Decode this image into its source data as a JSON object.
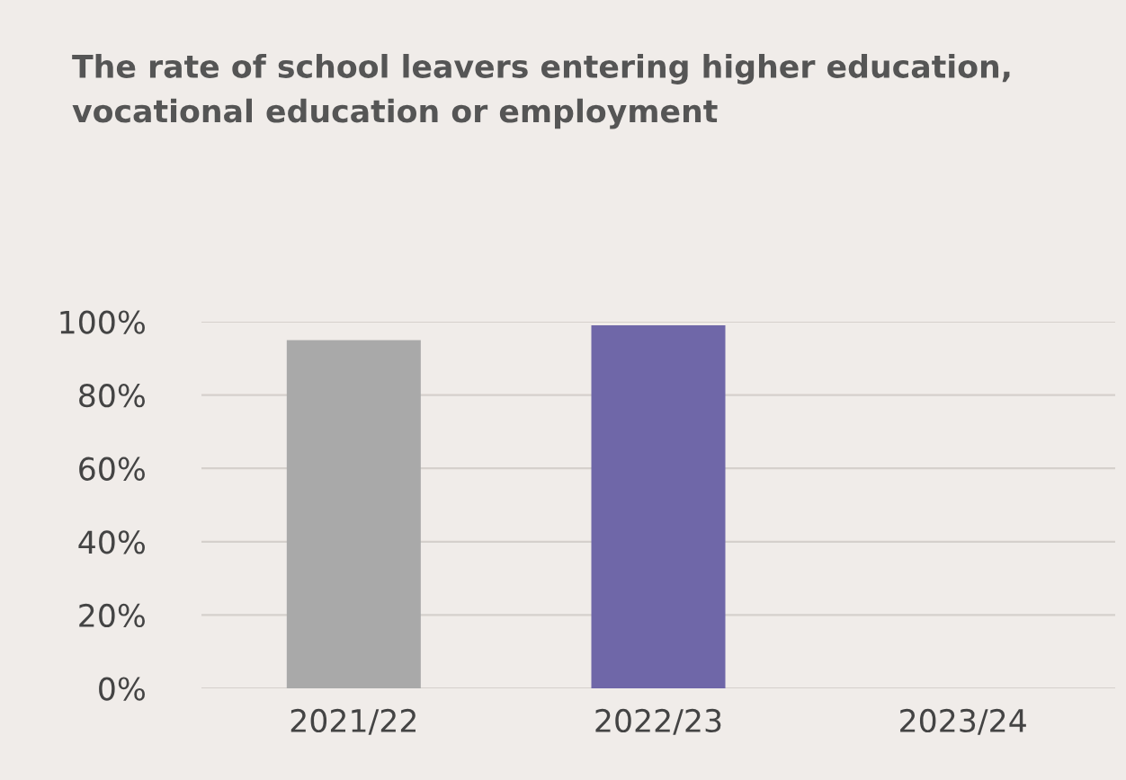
{
  "chart_data": {
    "type": "bar",
    "title": "The rate of school leavers entering higher education,\nvocational education or employment",
    "categories": [
      "2021/22",
      "2022/23",
      "2023/24"
    ],
    "values": [
      95,
      99,
      null
    ],
    "colors": [
      "#a9a9a9",
      "#6f67a8",
      "#6f67a8"
    ],
    "ylim": [
      0,
      100
    ],
    "yticks": [
      {
        "value": 0,
        "label": "0%"
      },
      {
        "value": 20,
        "label": "20%"
      },
      {
        "value": 40,
        "label": "40%"
      },
      {
        "value": 60,
        "label": "60%"
      },
      {
        "value": 80,
        "label": "80%"
      },
      {
        "value": 100,
        "label": "100%"
      }
    ],
    "grid": "y"
  }
}
